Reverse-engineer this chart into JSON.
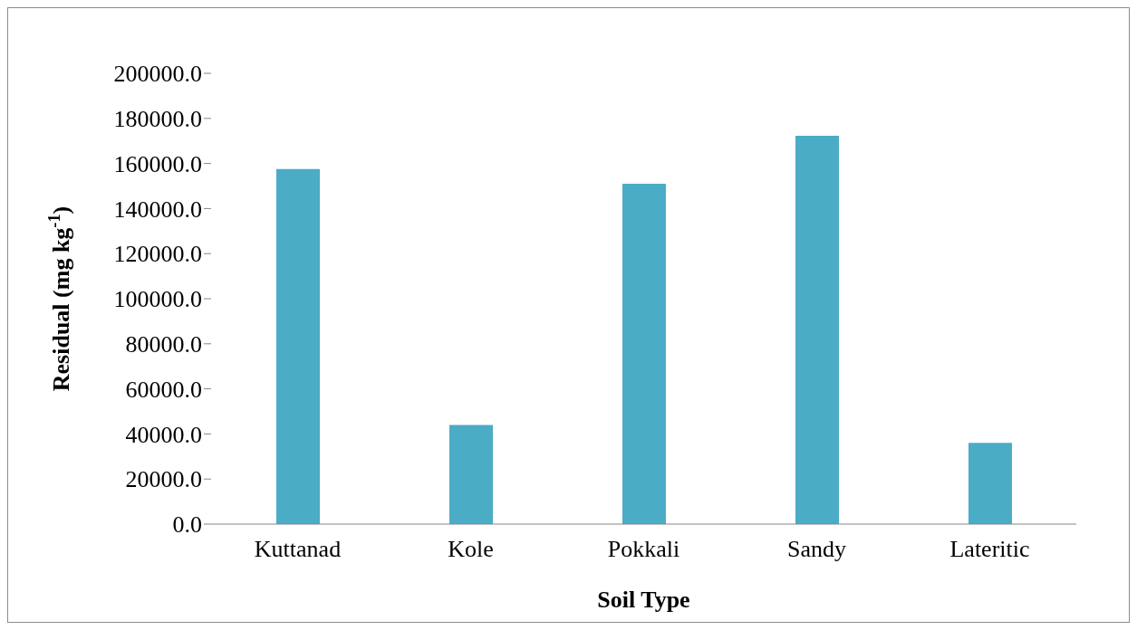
{
  "chart_data": {
    "type": "bar",
    "xlabel": "Soil Type",
    "ylabel": "Residual (mg kg$^{-1}$)",
    "categories": [
      "Kuttanad",
      "Kole",
      "Pokkali",
      "Sandy",
      "Lateritic"
    ],
    "values": [
      157500,
      44000,
      151000,
      172300,
      36000
    ],
    "color": "#4bacc6",
    "ylim": [
      0,
      200000
    ],
    "yticks": [
      {
        "value": 0,
        "label": "0.0"
      },
      {
        "value": 20000,
        "label": "20000.0"
      },
      {
        "value": 40000,
        "label": "40000.0"
      },
      {
        "value": 60000,
        "label": "60000.0"
      },
      {
        "value": 80000,
        "label": "80000.0"
      },
      {
        "value": 100000,
        "label": "100000.0"
      },
      {
        "value": 120000,
        "label": "120000.0"
      },
      {
        "value": 140000,
        "label": "140000.0"
      },
      {
        "value": 160000,
        "label": "160000.0"
      },
      {
        "value": 180000,
        "label": "180000.0"
      },
      {
        "value": 200000,
        "label": "200000.0"
      }
    ],
    "grid": false,
    "legend": false
  }
}
